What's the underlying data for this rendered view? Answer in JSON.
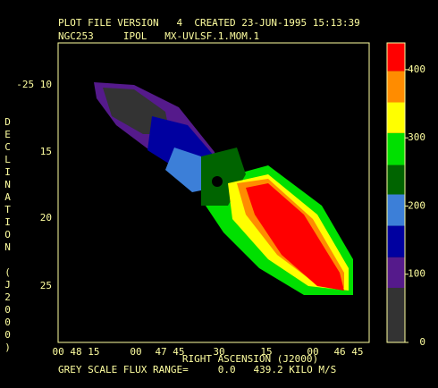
{
  "chart_data": {
    "type": "image",
    "title": "PLOT FILE VERSION   4  CREATED 23-JUN-1995 15:13:39",
    "subtitle": "NGC253     IPOL   MX-UVLSF.1.MOM.1",
    "xlabel": "RIGHT ASCENSION (J2000)",
    "ylabel": "DECLINATION (J2000)",
    "footer": "GREY SCALE FLUX RANGE=     0.0   439.2 KILO M/S",
    "xtick_labels": [
      "00 48 15",
      "00",
      "47 45",
      "30",
      "15",
      "00",
      "46 45"
    ],
    "ytick_labels": [
      "-25 10",
      "15",
      "20",
      "25"
    ],
    "colorbar": {
      "lim": [
        0,
        439.2
      ],
      "ticks": [
        0,
        100,
        200,
        300,
        400
      ],
      "levels": [
        0,
        80,
        125,
        171,
        217,
        260,
        307,
        352,
        398,
        439.2
      ],
      "colors": [
        "#333333",
        "#551a8b",
        "#0000a0",
        "#3c7fd8",
        "#006400",
        "#00e000",
        "#ffff00",
        "#ff8c00",
        "#ff0000"
      ]
    }
  }
}
